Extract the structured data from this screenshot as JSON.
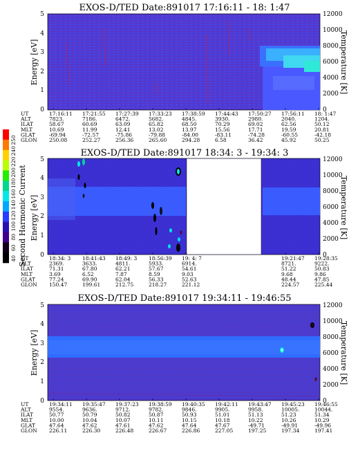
{
  "chart_data": [
    {
      "type": "heatmap",
      "title": "EXOS-D/TED   Date:891017  17:16:11 - 18: 1:47",
      "ylabel": "Energy [eV]",
      "ylabel_right": "Temperature [K]",
      "ylim": [
        0,
        5
      ],
      "yticks": [
        "0",
        "1",
        "2",
        "3",
        "4",
        "5"
      ],
      "ylim_right": [
        0,
        12000
      ],
      "yticks_right": [
        "0",
        "2000",
        "4000",
        "6000",
        "8000",
        "10000",
        "12000"
      ],
      "row_labels": [
        "UT",
        "ALT",
        "ILAT",
        "MLT",
        "GLAT",
        "GLON"
      ],
      "columns": [
        [
          "17:16:11",
          "7823.",
          "58.67",
          "10.69",
          "-69.94",
          "250.08"
        ],
        [
          "17:21:55",
          "7186.",
          "60.69",
          "11.99",
          "-72.57",
          "252.27"
        ],
        [
          "17:27:39",
          "6472.",
          "63.09",
          "12.41",
          "-75.86",
          "256.36"
        ],
        [
          "17:33:23",
          "5682.",
          "65.82",
          "13.02",
          "-79.88",
          "265.60"
        ],
        [
          "17:38:59",
          "4845.",
          "68.50",
          "13.97",
          "-84.00",
          "294.28"
        ],
        [
          "17:44:43",
          "3930.",
          "70.29",
          "15.56",
          "-83.11",
          "6.58"
        ],
        [
          "17:50:27",
          "2980.",
          "69.02",
          "17.71",
          "-74.28",
          "36.42"
        ],
        [
          "17:56:11",
          "2040.",
          "62.56",
          "19.59",
          "-60.55",
          "45.92"
        ],
        [
          "18: 1:47",
          "1204.",
          "50.12",
          "20.81",
          "-42.18",
          "50.25"
        ]
      ],
      "features": {
        "hot_region_start_fraction": 0.82,
        "hot_band_energy_ev": [
          2.5,
          3.4
        ]
      }
    },
    {
      "type": "heatmap",
      "title": "EXOS-D/TED   Date:891017  18:34: 3 - 19:34: 3",
      "ylabel": "Energy [eV]",
      "ylabel_right": "Temperature [K]",
      "ylim": [
        0,
        5
      ],
      "yticks": [
        "0",
        "1",
        "2",
        "3",
        "4",
        "5"
      ],
      "ylim_right": [
        0,
        12000
      ],
      "yticks_right": [
        "0",
        "2000",
        "4000",
        "6000",
        "8000",
        "10000",
        "12000"
      ],
      "row_labels": [
        "UT",
        "ALT",
        "ILAT",
        "MLT",
        "GLAT",
        "GLON"
      ],
      "columns": [
        [
          "18:34: 3",
          "2369.",
          "71.31",
          "3.69",
          "77.24",
          "150.47"
        ],
        [
          "18:41:43",
          "3633.",
          "67.80",
          "6.52",
          "69.90",
          "199.61"
        ],
        [
          "18:49: 3",
          "4811.",
          "62.21",
          "7.87",
          "62.04",
          "212.75"
        ],
        [
          "18:56:39",
          "5933.",
          "57.67",
          "8.59",
          "56.33",
          "218.27"
        ],
        [
          "19: 4: 7",
          "6914.",
          "54.61",
          "9.03",
          "52.63",
          "221.12"
        ],
        [
          "",
          "",
          "",
          "",
          "",
          ""
        ],
        [
          "",
          "",
          "",
          "",
          "",
          ""
        ],
        [
          "19:21:47",
          "8721.",
          "51.22",
          "9.68",
          "48.44",
          "224.57"
        ],
        [
          "19:28:35",
          "9222.",
          "50.83",
          "9.86",
          "47.85",
          "225.44"
        ]
      ],
      "data_gap_fraction": [
        0.52,
        0.82
      ],
      "features": {
        "warm_band_energy_ev": [
          2.2,
          3.7
        ]
      }
    },
    {
      "type": "heatmap",
      "title": "EXOS-D/TED   Date:891017  19:34:11 - 19:46:55",
      "ylabel": "Energy [eV]",
      "ylabel_right": "Temperature [K]",
      "ylim": [
        0,
        5
      ],
      "yticks": [
        "0",
        "1",
        "2",
        "3",
        "4",
        "5"
      ],
      "ylim_right": [
        0,
        12000
      ],
      "yticks_right": [
        "0",
        "2000",
        "4000",
        "6000",
        "8000",
        "10000",
        "12000"
      ],
      "row_labels": [
        "UT",
        "ALT",
        "ILAT",
        "MLT",
        "GLAT",
        "GLON"
      ],
      "columns": [
        [
          "19:34:11",
          "9554.",
          "50.77",
          "10.00",
          "47.64",
          "226.11"
        ],
        [
          "19:35:47",
          "9636.",
          "50.79",
          "10.04",
          "47.62",
          "226.30"
        ],
        [
          "19:37:23",
          "9712.",
          "50.82",
          "10.07",
          "47.61",
          "226.48"
        ],
        [
          "19:38:59",
          "9782.",
          "50.87",
          "10.11",
          "47.62",
          "226.67"
        ],
        [
          "19:40:35",
          "9846.",
          "50.93",
          "10.15",
          "47.64",
          "226.86"
        ],
        [
          "19:42:11",
          "9905.",
          "51.01",
          "10.18",
          "47.67",
          "227.05"
        ],
        [
          "19:43:47",
          "9958.",
          "51.13",
          "10.22",
          "-49.71",
          "197.25"
        ],
        [
          "19:45:23",
          "10005.",
          "51.23",
          "10.26",
          "-49.91",
          "197.34"
        ],
        [
          "19:46:55",
          "10044.",
          "51.34",
          "10.29",
          "-49.96",
          "197.41"
        ]
      ],
      "features": {
        "band_energy_ev": [
          2.3,
          3.3
        ]
      }
    }
  ],
  "colorbar": {
    "label": "Second Harmonic Current",
    "ticks": [
      "250",
      "240",
      "220",
      "200",
      "180",
      "160",
      "140",
      "120",
      "100",
      "80",
      "60",
      "40"
    ],
    "colors": [
      "#ff0000",
      "#ff7a00",
      "#ffd000",
      "#b8ff00",
      "#22ee00",
      "#00d890",
      "#00e8e8",
      "#00a8ff",
      "#2a3cff",
      "#2a10b0",
      "#40008a",
      "#100018",
      "#000000"
    ]
  }
}
